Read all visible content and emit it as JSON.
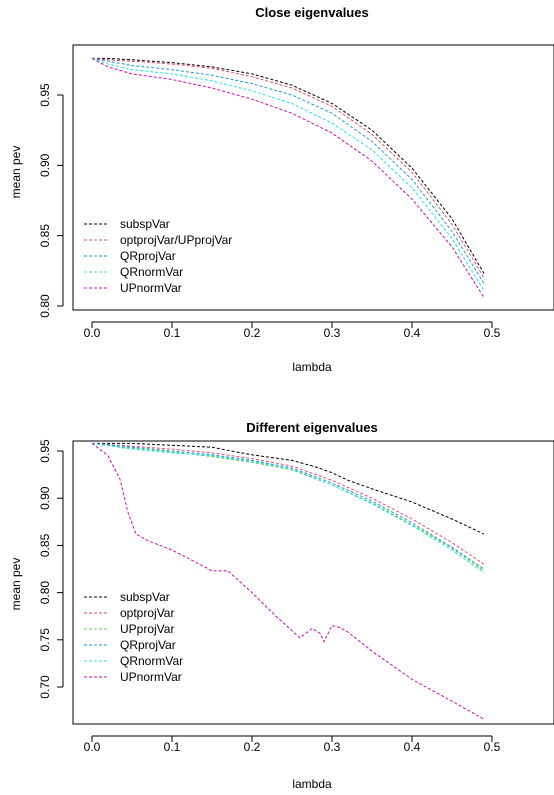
{
  "chart_data": [
    {
      "type": "line",
      "title": "Close eigenvalues",
      "xlabel": "lambda",
      "ylabel": "mean pev",
      "xlim": [
        0,
        0.5
      ],
      "ylim": [
        0.8,
        0.976
      ],
      "xticks": [
        "0.0",
        "0.1",
        "0.2",
        "0.3",
        "0.4",
        "0.5"
      ],
      "yticks": [
        "0.80",
        "0.85",
        "0.90",
        "0.95"
      ],
      "grid": false,
      "legend": "bottom-left",
      "x": [
        0.0,
        0.02,
        0.05,
        0.1,
        0.15,
        0.2,
        0.25,
        0.3,
        0.35,
        0.4,
        0.45,
        0.49
      ],
      "series": [
        {
          "name": "subspVar",
          "color": "#000000",
          "values": [
            0.976,
            0.976,
            0.975,
            0.973,
            0.97,
            0.965,
            0.957,
            0.944,
            0.925,
            0.898,
            0.862,
            0.823
          ]
        },
        {
          "name": "optprojVar/UPprojVar",
          "color": "#DF536B",
          "values": [
            0.976,
            0.975,
            0.974,
            0.972,
            0.969,
            0.963,
            0.955,
            0.942,
            0.922,
            0.895,
            0.858,
            0.82
          ]
        },
        {
          "name": "QRprojVar",
          "color": "#2297E6",
          "values": [
            0.976,
            0.974,
            0.971,
            0.968,
            0.964,
            0.958,
            0.95,
            0.937,
            0.917,
            0.89,
            0.853,
            0.816
          ]
        },
        {
          "name": "QRnormVar",
          "color": "#28E2E5",
          "values": [
            0.976,
            0.972,
            0.968,
            0.965,
            0.96,
            0.953,
            0.944,
            0.93,
            0.911,
            0.884,
            0.848,
            0.811
          ]
        },
        {
          "name": "UPnormVar",
          "color": "#CD0BBC",
          "values": [
            0.976,
            0.97,
            0.965,
            0.961,
            0.955,
            0.947,
            0.937,
            0.923,
            0.903,
            0.876,
            0.842,
            0.806
          ]
        }
      ]
    },
    {
      "type": "line",
      "title": "Different eigenvalues",
      "xlabel": "lambda",
      "ylabel": "mean pev",
      "xlim": [
        0,
        0.5
      ],
      "ylim": [
        0.655,
        0.962
      ],
      "xticks": [
        "0.0",
        "0.1",
        "0.2",
        "0.3",
        "0.4",
        "0.5"
      ],
      "yticks": [
        "0.70",
        "0.75",
        "0.80",
        "0.85",
        "0.90",
        "0.95"
      ],
      "grid": false,
      "legend": "bottom-left",
      "series": [
        {
          "name": "subspVar",
          "color": "#000000",
          "x": [
            0.0,
            0.05,
            0.1,
            0.15,
            0.18,
            0.2,
            0.25,
            0.28,
            0.3,
            0.32,
            0.35,
            0.4,
            0.45,
            0.49
          ],
          "values": [
            0.958,
            0.958,
            0.956,
            0.954,
            0.949,
            0.946,
            0.94,
            0.933,
            0.927,
            0.919,
            0.91,
            0.896,
            0.878,
            0.862
          ]
        },
        {
          "name": "optprojVar",
          "color": "#DF536B",
          "x": [
            0.0,
            0.05,
            0.1,
            0.15,
            0.2,
            0.25,
            0.3,
            0.35,
            0.4,
            0.45,
            0.49
          ],
          "values": [
            0.958,
            0.955,
            0.952,
            0.948,
            0.942,
            0.934,
            0.919,
            0.9,
            0.878,
            0.853,
            0.83
          ]
        },
        {
          "name": "UPprojVar",
          "color": "#61D04F",
          "x": [
            0.0,
            0.05,
            0.1,
            0.15,
            0.2,
            0.25,
            0.3,
            0.35,
            0.4,
            0.45,
            0.49
          ],
          "values": [
            0.958,
            0.953,
            0.949,
            0.944,
            0.938,
            0.93,
            0.914,
            0.895,
            0.872,
            0.847,
            0.823
          ]
        },
        {
          "name": "QRprojVar",
          "color": "#2297E6",
          "x": [
            0.0,
            0.05,
            0.1,
            0.15,
            0.2,
            0.25,
            0.3,
            0.35,
            0.4,
            0.45,
            0.49
          ],
          "values": [
            0.958,
            0.954,
            0.95,
            0.946,
            0.94,
            0.932,
            0.916,
            0.897,
            0.874,
            0.848,
            0.825
          ]
        },
        {
          "name": "QRnormVar",
          "color": "#28E2E5",
          "x": [
            0.0,
            0.05,
            0.1,
            0.15,
            0.2,
            0.25,
            0.3,
            0.35,
            0.4,
            0.45,
            0.49
          ],
          "values": [
            0.958,
            0.952,
            0.948,
            0.945,
            0.939,
            0.931,
            0.914,
            0.894,
            0.871,
            0.845,
            0.821
          ]
        },
        {
          "name": "UPnormVar",
          "color": "#CD0BBC",
          "x": [
            0.0,
            0.02,
            0.035,
            0.045,
            0.055,
            0.07,
            0.1,
            0.13,
            0.15,
            0.17,
            0.2,
            0.23,
            0.26,
            0.275,
            0.285,
            0.29,
            0.3,
            0.31,
            0.32,
            0.35,
            0.4,
            0.45,
            0.49
          ],
          "values": [
            0.958,
            0.945,
            0.92,
            0.885,
            0.862,
            0.855,
            0.845,
            0.832,
            0.823,
            0.823,
            0.8,
            0.775,
            0.752,
            0.762,
            0.757,
            0.748,
            0.765,
            0.763,
            0.758,
            0.738,
            0.708,
            0.685,
            0.666
          ]
        }
      ]
    }
  ]
}
